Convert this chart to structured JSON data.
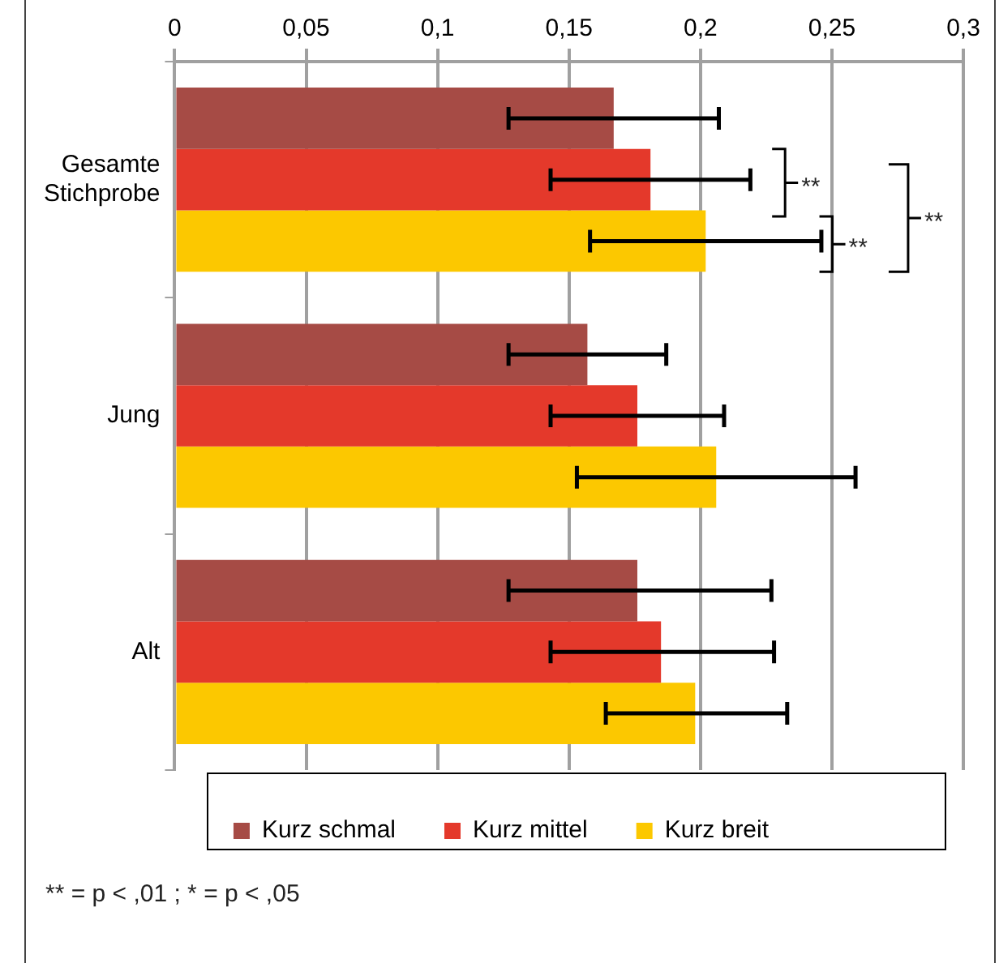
{
  "chart_data": {
    "type": "bar",
    "orientation": "horizontal",
    "categories": [
      "Gesamte Stichprobe",
      "Jung",
      "Alt"
    ],
    "series": [
      {
        "name": "Kurz schmal",
        "color": "#a64b45",
        "values": [
          0.167,
          0.157,
          0.176
        ],
        "errors": [
          [
            0.127,
            0.207
          ],
          [
            0.127,
            0.187
          ],
          [
            0.127,
            0.227
          ]
        ]
      },
      {
        "name": "Kurz mittel",
        "color": "#e4392b",
        "values": [
          0.181,
          0.176,
          0.185
        ],
        "errors": [
          [
            0.143,
            0.219
          ],
          [
            0.143,
            0.209
          ],
          [
            0.143,
            0.228
          ]
        ]
      },
      {
        "name": "Kurz breit",
        "color": "#fcc800",
        "values": [
          0.202,
          0.206,
          0.198
        ],
        "errors": [
          [
            0.158,
            0.246
          ],
          [
            0.153,
            0.259
          ],
          [
            0.164,
            0.233
          ]
        ]
      }
    ],
    "xlim": [
      0,
      0.3
    ],
    "xticks": [
      {
        "value": 0,
        "label": "0"
      },
      {
        "value": 0.05,
        "label": "0,05"
      },
      {
        "value": 0.1,
        "label": "0,1"
      },
      {
        "value": 0.15,
        "label": "0,15"
      },
      {
        "value": 0.2,
        "label": "0,2"
      },
      {
        "value": 0.25,
        "label": "0,25"
      },
      {
        "value": 0.3,
        "label": "0,3"
      }
    ],
    "grid": "x",
    "legend": "bottom",
    "annotations": [
      "**",
      "**",
      "**",
      "** = p < ,01 ; * = p < ,05"
    ]
  }
}
